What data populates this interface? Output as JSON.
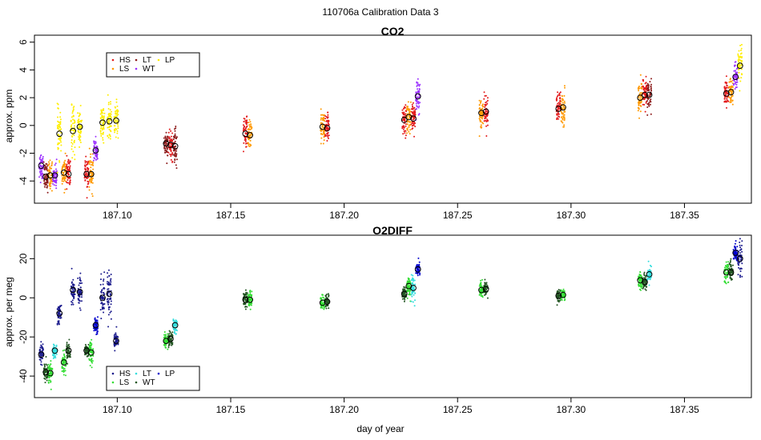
{
  "figure_title": "110706a   Calibration Data 3",
  "xlabel": "day of year",
  "x_ticks": [
    187.1,
    187.15,
    187.2,
    187.25,
    187.3,
    187.35
  ],
  "x_tick_labels": [
    "187.10",
    "187.15",
    "187.20",
    "187.25",
    "187.30",
    "187.35"
  ],
  "colors": {
    "HS": "#e31a1c",
    "LS": "#ff9900",
    "LT": "#8b1a1a",
    "WT": "#9b30ff",
    "LP": "#ffee00",
    "HS_o2": "#1a1a8c",
    "LS_o2": "#33dd33",
    "LT_o2": "#33dddd",
    "WT_o2": "#225522",
    "LP_o2": "#0000cc"
  },
  "chart_data": [
    {
      "type": "scatter",
      "title": "CO2",
      "ylabel": "approx. ppm",
      "xlim": [
        187.0635,
        187.3795
      ],
      "ylim": [
        -5.6,
        6.5
      ],
      "y_ticks": [
        -4,
        -2,
        0,
        2,
        4,
        6
      ],
      "y_tick_labels": [
        "-4",
        "-2",
        "0",
        "2",
        "4",
        "6"
      ],
      "legend": {
        "placement": "top-left",
        "entries": [
          "HS",
          "LS",
          "LT",
          "WT",
          "LP"
        ]
      },
      "groups": [
        {
          "x": 187.0665,
          "y": -2.9,
          "sd": 0.5,
          "color": "WT"
        },
        {
          "x": 187.0685,
          "y": -3.7,
          "sd": 0.5,
          "color": "LT"
        },
        {
          "x": 187.0705,
          "y": -3.6,
          "sd": 0.5,
          "color": "LS"
        },
        {
          "x": 187.0725,
          "y": -3.6,
          "sd": 0.4,
          "color": "WT"
        },
        {
          "x": 187.0745,
          "y": -0.6,
          "sd": 0.8,
          "color": "LP"
        },
        {
          "x": 187.0765,
          "y": -3.4,
          "sd": 0.5,
          "color": "LS"
        },
        {
          "x": 187.0785,
          "y": -3.5,
          "sd": 0.6,
          "color": "HS"
        },
        {
          "x": 187.0805,
          "y": -0.4,
          "sd": 0.8,
          "color": "LP"
        },
        {
          "x": 187.0835,
          "y": -0.1,
          "sd": 0.8,
          "color": "LP"
        },
        {
          "x": 187.0865,
          "y": -3.5,
          "sd": 0.6,
          "color": "HS"
        },
        {
          "x": 187.0885,
          "y": -3.5,
          "sd": 0.6,
          "color": "LS"
        },
        {
          "x": 187.0905,
          "y": -1.8,
          "sd": 0.4,
          "color": "WT"
        },
        {
          "x": 187.0935,
          "y": 0.2,
          "sd": 0.6,
          "color": "LP"
        },
        {
          "x": 187.0965,
          "y": 0.3,
          "sd": 0.6,
          "color": "LP"
        },
        {
          "x": 187.0995,
          "y": 0.35,
          "sd": 0.6,
          "color": "LP"
        },
        {
          "x": 187.1215,
          "y": -1.3,
          "sd": 0.5,
          "color": "LT"
        },
        {
          "x": 187.1235,
          "y": -1.4,
          "sd": 0.6,
          "color": "HS"
        },
        {
          "x": 187.1255,
          "y": -1.5,
          "sd": 0.6,
          "color": "LT"
        },
        {
          "x": 187.1565,
          "y": -0.6,
          "sd": 0.7,
          "color": "HS"
        },
        {
          "x": 187.1585,
          "y": -0.7,
          "sd": 0.5,
          "color": "LS"
        },
        {
          "x": 187.1905,
          "y": -0.1,
          "sd": 0.6,
          "color": "LS"
        },
        {
          "x": 187.1925,
          "y": -0.2,
          "sd": 0.5,
          "color": "HS"
        },
        {
          "x": 187.2265,
          "y": 0.4,
          "sd": 0.5,
          "color": "HS"
        },
        {
          "x": 187.2285,
          "y": 0.6,
          "sd": 0.5,
          "color": "LS"
        },
        {
          "x": 187.2305,
          "y": 0.5,
          "sd": 0.5,
          "color": "HS"
        },
        {
          "x": 187.2325,
          "y": 2.1,
          "sd": 0.6,
          "color": "WT"
        },
        {
          "x": 187.2605,
          "y": 0.9,
          "sd": 0.5,
          "color": "LS"
        },
        {
          "x": 187.2625,
          "y": 1.0,
          "sd": 0.6,
          "color": "HS"
        },
        {
          "x": 187.2945,
          "y": 1.2,
          "sd": 0.6,
          "color": "HS"
        },
        {
          "x": 187.2965,
          "y": 1.3,
          "sd": 0.6,
          "color": "LS"
        },
        {
          "x": 187.3305,
          "y": 2.0,
          "sd": 0.6,
          "color": "LS"
        },
        {
          "x": 187.3325,
          "y": 2.2,
          "sd": 0.6,
          "color": "HS"
        },
        {
          "x": 187.3345,
          "y": 2.2,
          "sd": 0.6,
          "color": "LT"
        },
        {
          "x": 187.3685,
          "y": 2.3,
          "sd": 0.5,
          "color": "HS"
        },
        {
          "x": 187.3705,
          "y": 2.4,
          "sd": 0.5,
          "color": "LS"
        },
        {
          "x": 187.3725,
          "y": 3.5,
          "sd": 0.5,
          "color": "WT"
        },
        {
          "x": 187.3745,
          "y": 4.3,
          "sd": 0.6,
          "color": "LP"
        }
      ]
    },
    {
      "type": "scatter",
      "title": "O2DIFF",
      "ylabel": "approx. per meg",
      "xlim": [
        187.0635,
        187.3795
      ],
      "ylim": [
        -51,
        32
      ],
      "y_ticks": [
        -40,
        -20,
        0,
        20
      ],
      "y_tick_labels": [
        "-40",
        "-20",
        "0",
        "20"
      ],
      "legend": {
        "placement": "bottom-left",
        "entries": [
          "HS",
          "LS",
          "LT",
          "WT",
          "LP"
        ]
      },
      "groups": [
        {
          "x": 187.0665,
          "y": -29,
          "sd": 2.5,
          "color": "HS_o2"
        },
        {
          "x": 187.0685,
          "y": -38,
          "sd": 2.5,
          "color": "WT_o2"
        },
        {
          "x": 187.0705,
          "y": -38.5,
          "sd": 2.5,
          "color": "LS_o2"
        },
        {
          "x": 187.0725,
          "y": -27,
          "sd": 1.5,
          "color": "LT_o2"
        },
        {
          "x": 187.0745,
          "y": -8,
          "sd": 3,
          "color": "HS_o2"
        },
        {
          "x": 187.0765,
          "y": -33,
          "sd": 2.5,
          "color": "LS_o2"
        },
        {
          "x": 187.0785,
          "y": -27,
          "sd": 2,
          "color": "WT_o2"
        },
        {
          "x": 187.0805,
          "y": 4,
          "sd": 4,
          "color": "HS_o2"
        },
        {
          "x": 187.0835,
          "y": 3,
          "sd": 4,
          "color": "HS_o2"
        },
        {
          "x": 187.0865,
          "y": -27,
          "sd": 2,
          "color": "WT_o2"
        },
        {
          "x": 187.0885,
          "y": -28,
          "sd": 2.5,
          "color": "LS_o2"
        },
        {
          "x": 187.0905,
          "y": -14,
          "sd": 2,
          "color": "LP_o2"
        },
        {
          "x": 187.0935,
          "y": 0,
          "sd": 5,
          "color": "HS_o2"
        },
        {
          "x": 187.0965,
          "y": 2,
          "sd": 6,
          "color": "HS_o2"
        },
        {
          "x": 187.0995,
          "y": -22,
          "sd": 2,
          "color": "HS_o2"
        },
        {
          "x": 187.1215,
          "y": -22,
          "sd": 2,
          "color": "LS_o2"
        },
        {
          "x": 187.1235,
          "y": -21,
          "sd": 2,
          "color": "WT_o2"
        },
        {
          "x": 187.1255,
          "y": -14,
          "sd": 2,
          "color": "LT_o2"
        },
        {
          "x": 187.1565,
          "y": -1,
          "sd": 2,
          "color": "WT_o2"
        },
        {
          "x": 187.1585,
          "y": -1,
          "sd": 2,
          "color": "LS_o2"
        },
        {
          "x": 187.1905,
          "y": -2.5,
          "sd": 1.8,
          "color": "LS_o2"
        },
        {
          "x": 187.1925,
          "y": -2,
          "sd": 1.8,
          "color": "WT_o2"
        },
        {
          "x": 187.2265,
          "y": 2,
          "sd": 2,
          "color": "WT_o2"
        },
        {
          "x": 187.2285,
          "y": 6,
          "sd": 2.5,
          "color": "LS_o2"
        },
        {
          "x": 187.2305,
          "y": 5,
          "sd": 3,
          "color": "LT_o2"
        },
        {
          "x": 187.2325,
          "y": 14.5,
          "sd": 1.5,
          "color": "LP_o2"
        },
        {
          "x": 187.2605,
          "y": 4,
          "sd": 2,
          "color": "LS_o2"
        },
        {
          "x": 187.2625,
          "y": 4.5,
          "sd": 2,
          "color": "WT_o2"
        },
        {
          "x": 187.2945,
          "y": 1,
          "sd": 1.5,
          "color": "WT_o2"
        },
        {
          "x": 187.2965,
          "y": 1.5,
          "sd": 1.5,
          "color": "LS_o2"
        },
        {
          "x": 187.3305,
          "y": 9,
          "sd": 2,
          "color": "LS_o2"
        },
        {
          "x": 187.3325,
          "y": 8,
          "sd": 2,
          "color": "WT_o2"
        },
        {
          "x": 187.3345,
          "y": 12,
          "sd": 2,
          "color": "LT_o2"
        },
        {
          "x": 187.3685,
          "y": 13,
          "sd": 3.5,
          "color": "LS_o2"
        },
        {
          "x": 187.3705,
          "y": 13,
          "sd": 3,
          "color": "WT_o2"
        },
        {
          "x": 187.3725,
          "y": 23,
          "sd": 2.5,
          "color": "LP_o2"
        },
        {
          "x": 187.3745,
          "y": 20,
          "sd": 4,
          "color": "HS_o2"
        }
      ]
    }
  ]
}
